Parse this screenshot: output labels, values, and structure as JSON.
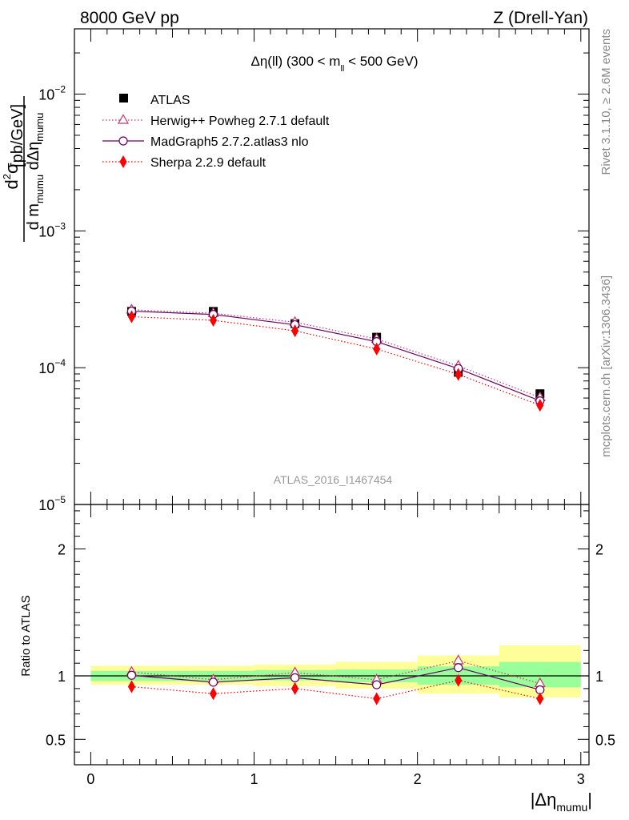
{
  "header": {
    "left": "8000 GeV pp",
    "right": "Z (Drell-Yan)"
  },
  "side_labels": {
    "rivet": "Rivet 3.1.10, ≥ 2.6M events",
    "mcplots": "mcplots.cern.ch [arXiv:1306.3436]"
  },
  "analysis_id": "ATLAS_2016_I1467454",
  "chart_data": [
    {
      "type": "scatter",
      "panel": "main",
      "title": "Δη(ll) (300 < m_ll < 500 GeV)",
      "title_parts": {
        "pre": "Δη(ll) (300 < m",
        "sub": "ll",
        "post": " < 500 GeV)"
      },
      "ylabel": "d²σ / d m_mumu dΔη_mumu [pb/GeV]",
      "ylabel_parts": {
        "num": "d",
        "num_sup": "2",
        "num_post": "σ",
        "den1": "d m",
        "den_sub1": "mumu",
        "den2": " dΔη",
        "den_sub2": "mumu",
        "unit": "[pb/GeV]"
      },
      "y_scale": "log",
      "ylim": [
        1e-05,
        0.03
      ],
      "xlim": [
        -0.1,
        3.05
      ],
      "y_tick_labels": [
        {
          "value": 1e-05,
          "base": "10",
          "exp": "−5"
        },
        {
          "value": 0.0001,
          "base": "10",
          "exp": "−4"
        },
        {
          "value": 0.001,
          "base": "10",
          "exp": "−3"
        },
        {
          "value": 0.01,
          "base": "10",
          "exp": "−2"
        }
      ],
      "x": [
        0.25,
        0.75,
        1.25,
        1.75,
        2.25,
        2.75
      ],
      "x_bins": [
        [
          0.0,
          0.5
        ],
        [
          0.5,
          1.0
        ],
        [
          1.0,
          1.5
        ],
        [
          1.5,
          2.0
        ],
        [
          2.0,
          2.5
        ],
        [
          2.5,
          3.0
        ]
      ],
      "legend_position": "top-left",
      "series": [
        {
          "name": "ATLAS",
          "color": "#000000",
          "marker": "square",
          "line": "none",
          "values": [
            0.000258,
            0.000258,
            0.00021,
            0.000167,
            9.25e-05,
            6.45e-05
          ]
        },
        {
          "name": "Herwig++ Powheg 2.7.1 default",
          "color": "#cc3366",
          "marker": "triangle-open",
          "line": "dotted",
          "values": [
            0.000265,
            0.00025,
            0.000215,
            0.000162,
            0.000103,
            6.05e-05
          ]
        },
        {
          "name": "MadGraph5 2.7.2.atlas3 nlo",
          "color": "#660066",
          "marker": "circle-open",
          "line": "solid",
          "values": [
            0.000259,
            0.000245,
            0.000206,
            0.000155,
            9.85e-05,
            5.72e-05
          ]
        },
        {
          "name": "Sherpa 2.2.9 default",
          "color": "#ff0000",
          "marker": "diamond",
          "line": "dotted",
          "values": [
            0.000236,
            0.000222,
            0.000186,
            0.000137,
            8.93e-05,
            5.31e-05
          ]
        }
      ]
    },
    {
      "type": "scatter",
      "panel": "ratio",
      "ylabel": "Ratio to ATLAS",
      "xlabel": "|Δη_mumu|",
      "xlabel_parts": {
        "pre": "|Δη",
        "sub": "mumu",
        "post": "|"
      },
      "xlim": [
        -0.1,
        3.05
      ],
      "ylim": [
        0.3,
        2.35
      ],
      "x_ticks": [
        0,
        1,
        2,
        3
      ],
      "x_tick_labels": [
        "0",
        "1",
        "2",
        "3"
      ],
      "y_ticks": [
        0.5,
        1,
        2
      ],
      "y_tick_labels": [
        "0.5",
        "1",
        "2"
      ],
      "x": [
        0.25,
        0.75,
        1.25,
        1.75,
        2.25,
        2.75
      ],
      "x_bins": [
        [
          0.0,
          0.5
        ],
        [
          0.5,
          1.0
        ],
        [
          1.0,
          1.5
        ],
        [
          1.5,
          2.0
        ],
        [
          2.0,
          2.5
        ],
        [
          2.5,
          3.0
        ]
      ],
      "uncertainty_bands": {
        "inner_color": "#99ff99",
        "outer_color": "#ffff99",
        "inner": [
          [
            0.96,
            1.04
          ],
          [
            0.96,
            1.04
          ],
          [
            0.965,
            1.045
          ],
          [
            0.95,
            1.05
          ],
          [
            0.93,
            1.075
          ],
          [
            0.91,
            1.11
          ]
        ],
        "outer": [
          [
            0.93,
            1.08
          ],
          [
            0.93,
            1.08
          ],
          [
            0.92,
            1.09
          ],
          [
            0.9,
            1.11
          ],
          [
            0.86,
            1.16
          ],
          [
            0.83,
            1.24
          ]
        ]
      },
      "reference_line": 1,
      "series": [
        {
          "name": "Herwig++ Powheg 2.7.1 default",
          "color": "#cc3366",
          "marker": "triangle-open",
          "line": "dotted",
          "values": [
            1.03,
            0.97,
            1.025,
            0.97,
            1.12,
            0.94
          ]
        },
        {
          "name": "MadGraph5 2.7.2.atlas3 nlo",
          "color": "#660066",
          "marker": "circle-open",
          "line": "solid",
          "values": [
            1.005,
            0.95,
            0.985,
            0.93,
            1.065,
            0.89
          ]
        },
        {
          "name": "Sherpa 2.2.9 default",
          "color": "#ff0000",
          "marker": "diamond",
          "line": "dotted",
          "values": [
            0.915,
            0.86,
            0.9,
            0.82,
            0.965,
            0.82
          ]
        }
      ]
    }
  ]
}
